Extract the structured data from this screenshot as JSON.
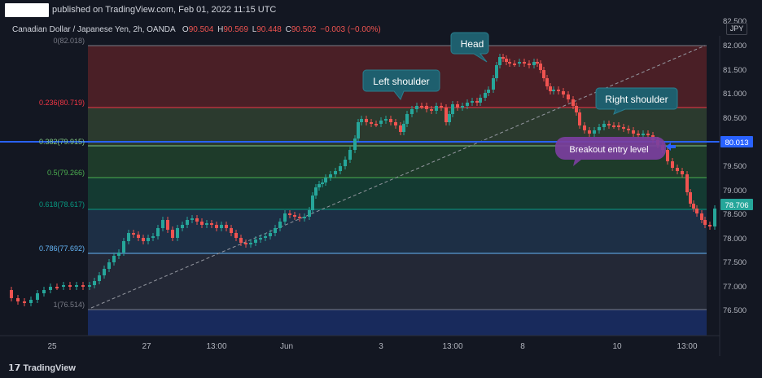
{
  "header": {
    "published": "published on TradingView.com, Feb 01, 2022 11:15 UTC"
  },
  "symbol": {
    "name": "Canadian Dollar / Japanese Yen, 2h, OANDA",
    "o_label": "O",
    "o": "90.504",
    "h_label": "H",
    "h": "90.569",
    "l_label": "L",
    "l": "90.448",
    "c_label": "C",
    "c": "90.502",
    "change": "−0.003 (−0.00%)"
  },
  "currency": "JPY",
  "price_axis": {
    "ticks": [
      "82.500",
      "82.000",
      "81.500",
      "81.000",
      "80.500",
      "80.000",
      "79.500",
      "79.000",
      "78.500",
      "78.000",
      "77.500",
      "77.000",
      "76.500"
    ],
    "current_price_badge": "80.013",
    "last_price_badge": "78.706"
  },
  "time_axis": {
    "labels": [
      "25",
      "27",
      "13:00",
      "Jun",
      "3",
      "13:00",
      "8",
      "10",
      "13:00"
    ]
  },
  "fib_levels": [
    {
      "label": "0(82.018)",
      "color": "#787b86"
    },
    {
      "label": "0.236(80.719)",
      "color": "#f23645"
    },
    {
      "label": "0.382(79.915)",
      "color": "#81c784"
    },
    {
      "label": "0.5(79.266)",
      "color": "#4caf50"
    },
    {
      "label": "0.618(78.617)",
      "color": "#089981"
    },
    {
      "label": "0.786(77.692)",
      "color": "#64b5f6"
    },
    {
      "label": "1(76.514)",
      "color": "#787b86"
    }
  ],
  "annotations": {
    "head": "Head",
    "left_shoulder": "Left shoulder",
    "right_shoulder": "Right shoulder",
    "breakout": "Breakout entry level"
  },
  "colors": {
    "up": "#26a69a",
    "down": "#ef5350",
    "background": "#131722",
    "horizontal_line": "#2962ff",
    "callout_teal": "#1e5f6e",
    "callout_purple": "#7b3f9e"
  },
  "footer": {
    "brand": "TradingView"
  }
}
